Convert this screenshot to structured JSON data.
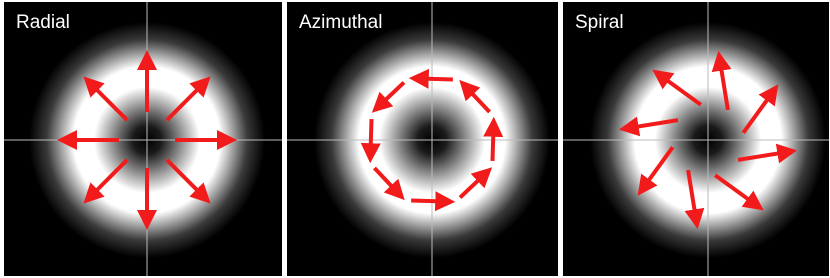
{
  "panels": [
    {
      "title": "Radial"
    },
    {
      "title": "Azimuthal"
    },
    {
      "title": "Spiral"
    }
  ]
}
